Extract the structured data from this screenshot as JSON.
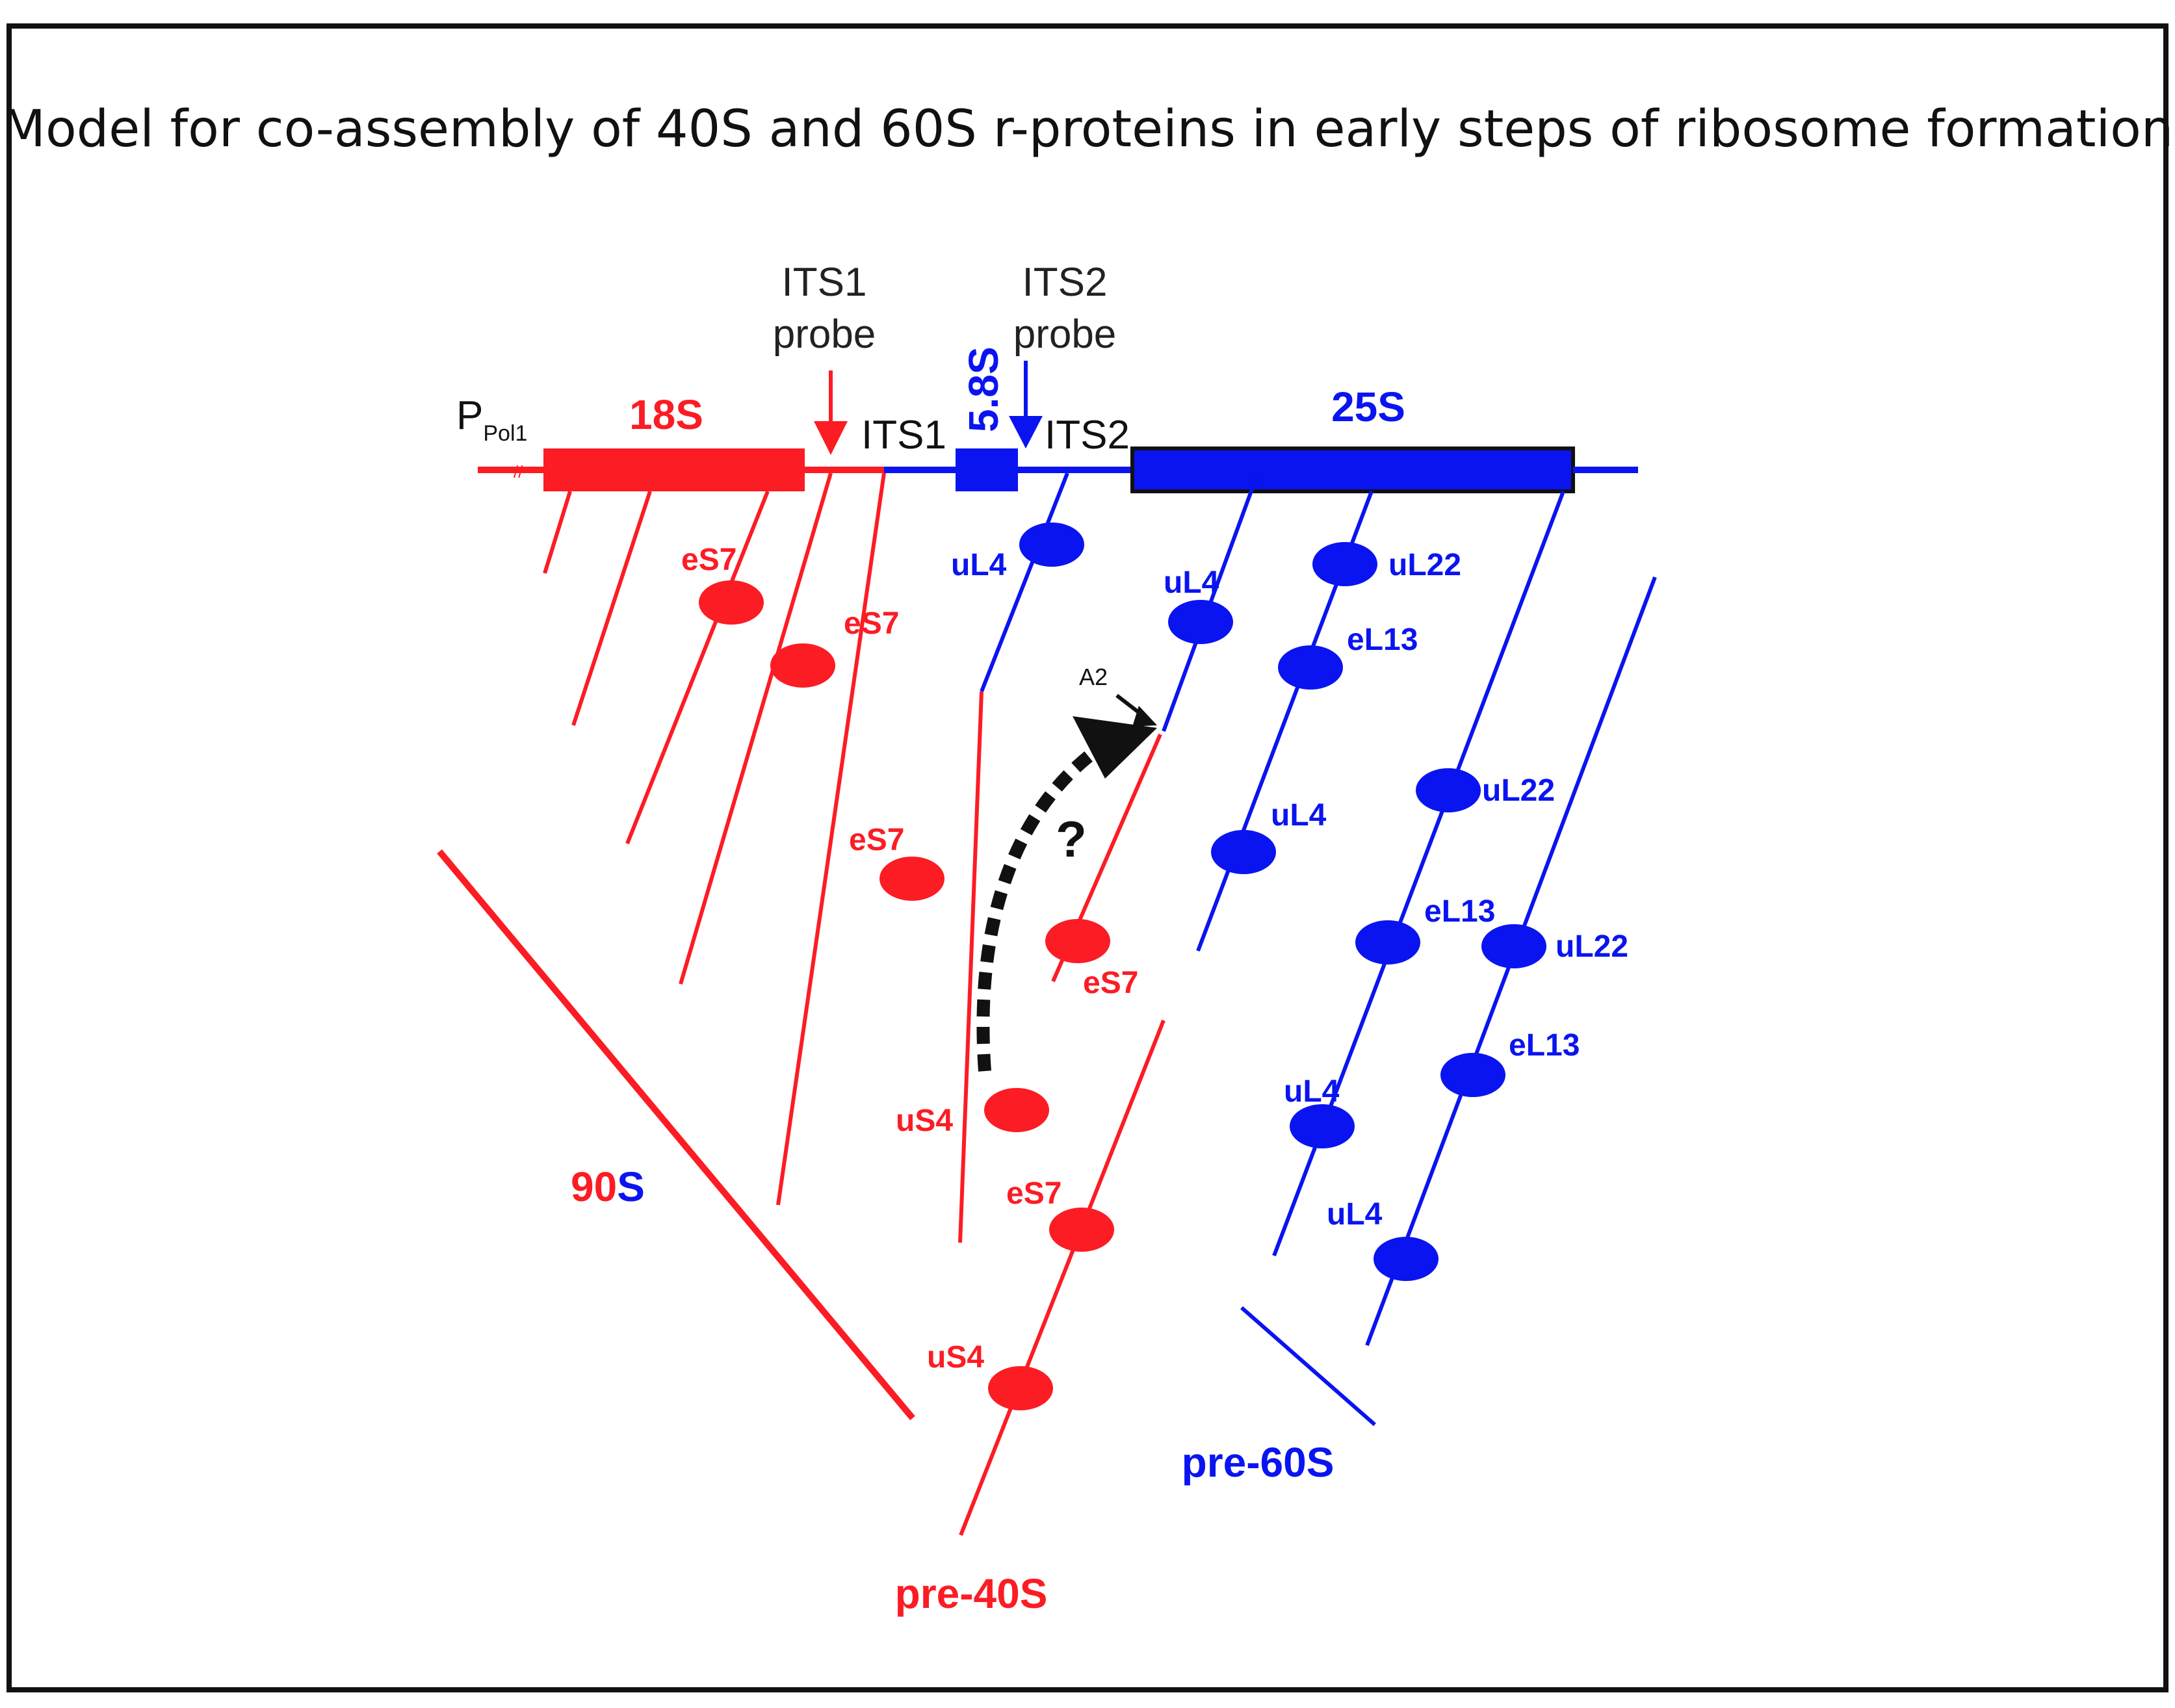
{
  "title": "Model for co-assembly of 40S and 60S r-proteins in early steps of ribosome formation",
  "colors": {
    "red": "#fc1c24",
    "blue": "#0a14f0",
    "black": "#111111"
  },
  "gene": {
    "promoter": "P",
    "promoter_sub": "Pol1",
    "break_mark": "//",
    "s18": "18S",
    "its1": "ITS1",
    "s58": "5.8S",
    "its2": "ITS2",
    "s25": "25S"
  },
  "probes": {
    "its1_line1": "ITS1",
    "its1_line2": "probe",
    "its2_line1": "ITS2",
    "its2_line2": "probe"
  },
  "proteins": {
    "es7": "eS7",
    "us4": "uS4",
    "ul4": "uL4",
    "ul22": "uL22",
    "el13": "eL13"
  },
  "cleavage": {
    "site": "A2",
    "question": "?"
  },
  "particles": {
    "n90": "90",
    "s90": "S",
    "pre40": "pre-40S",
    "pre60": "pre-60S"
  }
}
